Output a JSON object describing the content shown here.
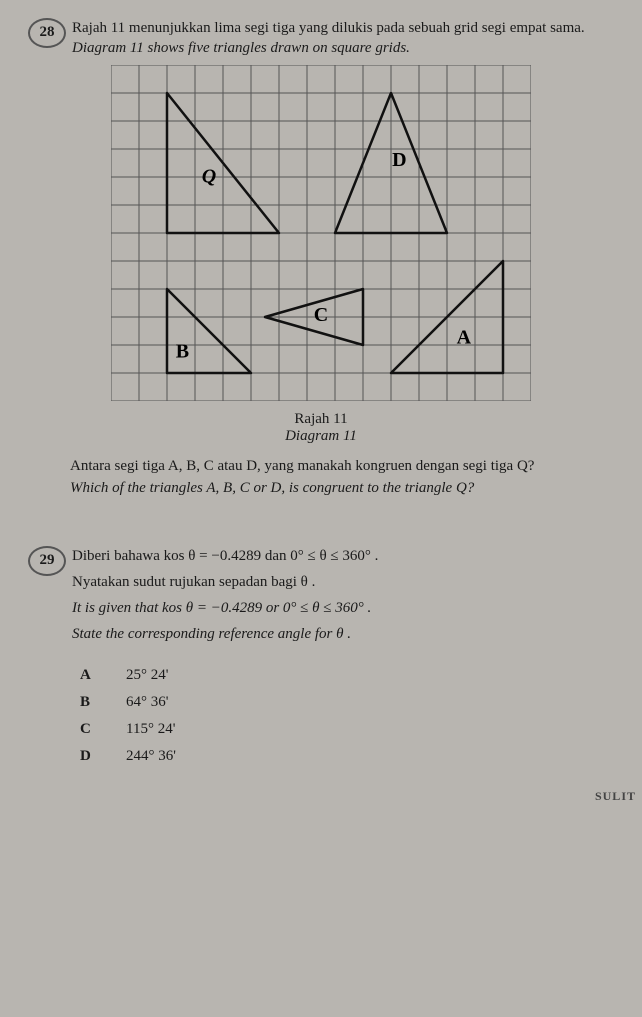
{
  "q28": {
    "number": "28",
    "line_bm": "Rajah 11 menunjukkan lima segi tiga yang dilukis pada sebuah grid segi empat sama.",
    "line_en": "Diagram 11 shows five triangles drawn on square grids.",
    "caption_bm": "Rajah 11",
    "caption_en": "Diagram 11",
    "ask_bm": "Antara segi tiga A, B, C atau D, yang manakah kongruen dengan segi tiga Q?",
    "ask_en": "Which of the triangles A, B, C or D, is congruent to the triangle Q?",
    "diagram": {
      "grid": {
        "cols": 15,
        "rows": 12,
        "cell": 28,
        "stroke": "#555",
        "width": 1
      },
      "stroke": "#111",
      "width": 2.5,
      "triangles": {
        "Q": {
          "points": [
            [
              2,
              1
            ],
            [
              2,
              6
            ],
            [
              6,
              6
            ]
          ],
          "label": "Q",
          "lx": 3.5,
          "ly": 4.2,
          "italic": true
        },
        "D": {
          "points": [
            [
              8,
              6
            ],
            [
              10,
              1
            ],
            [
              12,
              6
            ]
          ],
          "label": "D",
          "lx": 10.3,
          "ly": 3.6
        },
        "B": {
          "points": [
            [
              2,
              8
            ],
            [
              2,
              11
            ],
            [
              5,
              11
            ]
          ],
          "label": "B",
          "lx": 2.55,
          "ly": 10.45
        },
        "C": {
          "points": [
            [
              5.5,
              9
            ],
            [
              9,
              8
            ],
            [
              9,
              10
            ]
          ],
          "label": "C",
          "lx": 7.5,
          "ly": 9.15
        },
        "A": {
          "points": [
            [
              10,
              11
            ],
            [
              14,
              7
            ],
            [
              14,
              11
            ]
          ],
          "label": "A",
          "lx": 12.6,
          "ly": 9.95
        }
      }
    }
  },
  "q29": {
    "number": "29",
    "line1_bm": "Diberi bahawa kos θ = −0.4289 dan 0° ≤ θ ≤ 360° .",
    "line2_bm": "Nyatakan sudut rujukan sepadan bagi θ .",
    "line1_en": "It is given that kos θ = −0.4289 or 0° ≤ θ ≤ 360° .",
    "line2_en": "State the corresponding reference angle for θ .",
    "options": {
      "A": "25° 24'",
      "B": "64° 36'",
      "C": "115° 24'",
      "D": "244° 36'"
    }
  },
  "footer": "SULIT"
}
